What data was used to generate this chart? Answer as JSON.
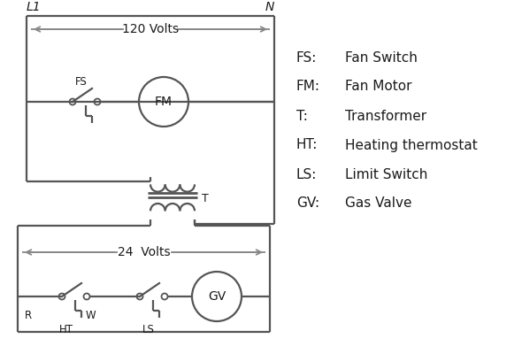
{
  "bg_color": "#ffffff",
  "line_color": "#555555",
  "arrow_color": "#888888",
  "text_color": "#1a1a1a",
  "line_width": 1.6,
  "legend_items": [
    [
      "FS:",
      "Fan Switch"
    ],
    [
      "FM:",
      "Fan Motor"
    ],
    [
      "T:",
      "Transformer"
    ],
    [
      "HT:",
      "Heating thermostat"
    ],
    [
      "LS:",
      "Limit Switch"
    ],
    [
      "GV:",
      "Gas Valve"
    ]
  ],
  "L1_label": "L1",
  "N_label": "N",
  "volts120_label": "120 Volts",
  "volts24_label": "24  Volts",
  "T_label": "T"
}
